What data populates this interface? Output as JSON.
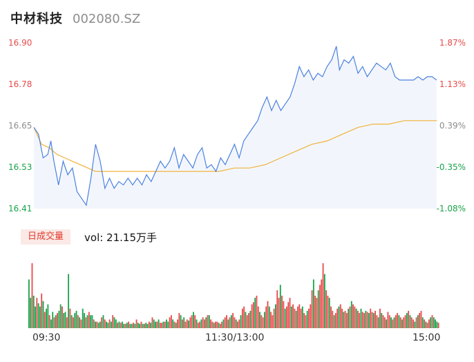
{
  "header": {
    "name": "中材科技",
    "code": "002080.SZ"
  },
  "colors": {
    "up": "#e84a4a",
    "down": "#18a34a",
    "flat": "#8c8c8c",
    "price_line": "#4a80e0",
    "avg_line": "#f2b13a"
  },
  "price_axis": {
    "left": [
      {
        "text": "16.90",
        "kind": "up"
      },
      {
        "text": "16.78",
        "kind": "up"
      },
      {
        "text": "16.65",
        "kind": "flat"
      },
      {
        "text": "16.53",
        "kind": "down"
      },
      {
        "text": "16.41",
        "kind": "down"
      }
    ],
    "right": [
      {
        "text": "1.87%",
        "kind": "up"
      },
      {
        "text": "1.13%",
        "kind": "up"
      },
      {
        "text": "0.39%",
        "kind": "flat"
      },
      {
        "text": "-0.35%",
        "kind": "down"
      },
      {
        "text": "-1.08%",
        "kind": "down"
      }
    ]
  },
  "volume": {
    "tab_label": "日成交量",
    "text": "vol: 21.15万手"
  },
  "time_axis": [
    "09:30",
    "11:30/13:00",
    "15:00"
  ],
  "chart_data": [
    {
      "type": "line",
      "ylim": [
        16.41,
        16.9
      ],
      "x_range": [
        "09:30",
        "15:00"
      ],
      "series": [
        {
          "points": [
            [
              0,
              16.65
            ],
            [
              3,
              16.63
            ],
            [
              6,
              16.56
            ],
            [
              9,
              16.57
            ],
            [
              11,
              16.61
            ],
            [
              13,
              16.55
            ],
            [
              16,
              16.48
            ],
            [
              19,
              16.55
            ],
            [
              22,
              16.51
            ],
            [
              25,
              16.53
            ],
            [
              28,
              16.46
            ],
            [
              31,
              16.44
            ],
            [
              34,
              16.42
            ],
            [
              37,
              16.5
            ],
            [
              40,
              16.6
            ],
            [
              43,
              16.55
            ],
            [
              46,
              16.47
            ],
            [
              49,
              16.5
            ],
            [
              52,
              16.47
            ],
            [
              55,
              16.49
            ],
            [
              58,
              16.48
            ],
            [
              61,
              16.5
            ],
            [
              64,
              16.48
            ],
            [
              67,
              16.5
            ],
            [
              70,
              16.48
            ],
            [
              73,
              16.51
            ],
            [
              76,
              16.49
            ],
            [
              79,
              16.52
            ],
            [
              82,
              16.55
            ],
            [
              85,
              16.53
            ],
            [
              88,
              16.55
            ],
            [
              91,
              16.59
            ],
            [
              94,
              16.53
            ],
            [
              97,
              16.57
            ],
            [
              100,
              16.55
            ],
            [
              103,
              16.53
            ],
            [
              106,
              16.57
            ],
            [
              109,
              16.59
            ],
            [
              112,
              16.53
            ],
            [
              115,
              16.54
            ],
            [
              118,
              16.52
            ],
            [
              121,
              16.56
            ],
            [
              124,
              16.54
            ],
            [
              127,
              16.57
            ],
            [
              130,
              16.6
            ],
            [
              133,
              16.56
            ],
            [
              136,
              16.61
            ],
            [
              139,
              16.63
            ],
            [
              142,
              16.65
            ],
            [
              145,
              16.67
            ],
            [
              148,
              16.71
            ],
            [
              151,
              16.74
            ],
            [
              154,
              16.7
            ],
            [
              157,
              16.73
            ],
            [
              160,
              16.7
            ],
            [
              163,
              16.72
            ],
            [
              166,
              16.74
            ],
            [
              169,
              16.78
            ],
            [
              172,
              16.83
            ],
            [
              175,
              16.8
            ],
            [
              178,
              16.82
            ],
            [
              181,
              16.79
            ],
            [
              184,
              16.81
            ],
            [
              187,
              16.8
            ],
            [
              190,
              16.83
            ],
            [
              193,
              16.85
            ],
            [
              196,
              16.89
            ],
            [
              198,
              16.82
            ],
            [
              201,
              16.85
            ],
            [
              204,
              16.84
            ],
            [
              207,
              16.86
            ],
            [
              210,
              16.81
            ],
            [
              213,
              16.83
            ],
            [
              216,
              16.8
            ],
            [
              219,
              16.82
            ],
            [
              222,
              16.84
            ],
            [
              225,
              16.83
            ],
            [
              228,
              16.82
            ],
            [
              231,
              16.84
            ],
            [
              234,
              16.8
            ],
            [
              237,
              16.79
            ],
            [
              240,
              16.79
            ],
            [
              243,
              16.79
            ],
            [
              246,
              16.79
            ],
            [
              249,
              16.8
            ],
            [
              252,
              16.79
            ],
            [
              255,
              16.8
            ],
            [
              258,
              16.8
            ],
            [
              261,
              16.79
            ]
          ]
        },
        {
          "points": [
            [
              0,
              16.65
            ],
            [
              5,
              16.6
            ],
            [
              10,
              16.59
            ],
            [
              15,
              16.57
            ],
            [
              20,
              16.56
            ],
            [
              25,
              16.55
            ],
            [
              30,
              16.54
            ],
            [
              35,
              16.53
            ],
            [
              40,
              16.52
            ],
            [
              45,
              16.52
            ],
            [
              50,
              16.52
            ],
            [
              60,
              16.52
            ],
            [
              70,
              16.52
            ],
            [
              80,
              16.52
            ],
            [
              90,
              16.52
            ],
            [
              100,
              16.52
            ],
            [
              110,
              16.52
            ],
            [
              120,
              16.52
            ],
            [
              130,
              16.53
            ],
            [
              140,
              16.53
            ],
            [
              150,
              16.54
            ],
            [
              160,
              16.56
            ],
            [
              170,
              16.58
            ],
            [
              180,
              16.6
            ],
            [
              190,
              16.61
            ],
            [
              200,
              16.63
            ],
            [
              210,
              16.65
            ],
            [
              220,
              16.66
            ],
            [
              230,
              16.66
            ],
            [
              240,
              16.67
            ],
            [
              250,
              16.67
            ],
            [
              261,
              16.67
            ]
          ]
        }
      ]
    },
    {
      "type": "bar",
      "x_range": [
        "09:30",
        "15:00"
      ],
      "values": [
        45,
        28,
        60,
        30,
        20,
        28,
        23,
        20,
        32,
        25,
        15,
        18,
        22,
        12,
        8,
        15,
        10,
        12,
        14,
        16,
        22,
        20,
        14,
        15,
        10,
        50,
        18,
        12,
        10,
        14,
        16,
        12,
        10,
        8,
        18,
        14,
        10,
        12,
        15,
        12,
        12,
        8,
        6,
        6,
        5,
        6,
        10,
        12,
        8,
        6,
        5,
        8,
        6,
        12,
        10,
        8,
        5,
        6,
        5,
        6,
        4,
        4,
        5,
        6,
        4,
        4,
        5,
        4,
        8,
        5,
        4,
        6,
        4,
        4,
        5,
        4,
        6,
        5,
        10,
        8,
        6,
        6,
        8,
        5,
        5,
        6,
        6,
        8,
        6,
        10,
        12,
        8,
        6,
        5,
        8,
        14,
        12,
        8,
        10,
        6,
        8,
        7,
        10,
        12,
        15,
        12,
        8,
        5,
        6,
        8,
        10,
        8,
        10,
        12,
        12,
        8,
        6,
        5,
        6,
        6,
        5,
        4,
        6,
        8,
        10,
        12,
        8,
        10,
        12,
        14,
        10,
        8,
        6,
        8,
        12,
        18,
        20,
        15,
        12,
        14,
        16,
        22,
        24,
        28,
        30,
        20,
        15,
        12,
        10,
        15,
        20,
        25,
        20,
        15,
        12,
        18,
        22,
        35,
        28,
        40,
        30,
        25,
        18,
        20,
        24,
        28,
        20,
        22,
        18,
        16,
        20,
        22,
        18,
        20,
        14,
        12,
        16,
        18,
        22,
        35,
        45,
        30,
        28,
        35,
        40,
        45,
        60,
        50,
        35,
        30,
        28,
        20,
        16,
        12,
        14,
        18,
        20,
        22,
        18,
        15,
        16,
        14,
        18,
        20,
        25,
        22,
        20,
        18,
        16,
        14,
        18,
        15,
        14,
        16,
        15,
        14,
        18,
        15,
        14,
        16,
        12,
        10,
        18,
        14,
        12,
        10,
        8,
        15,
        12,
        10,
        8,
        10,
        12,
        14,
        12,
        10,
        8,
        10,
        12,
        14,
        16,
        12,
        10,
        8,
        6,
        10,
        12,
        14,
        16,
        10,
        8,
        6,
        5,
        8,
        10,
        12,
        10,
        8,
        6,
        5
      ],
      "directions": "GGRGGRGGRGRGGRGGRGRGGRGGRGRGRGGRGRGGRGRGGRGRGGRGRGGRGRGGRGRGGRGRGGRGRGGRGRGGRGRGGRGRRGRGGRRGRGRRGRGRRGRRGRGRRGRRGRGRRGRRGRRGRRGRGRRGRRGRRGRRGRRGRRGRRGRRGRRRGRRGRRGRRRGRRGRRRGRRGRRRGRRGRRRGRRGRRGRRGRRGRRGRGRRGRRGRRGRGRRGRRGRGRRGRRGRGRRGRGRRGRGRRGRGRRGRGRRGRG"
    }
  ]
}
